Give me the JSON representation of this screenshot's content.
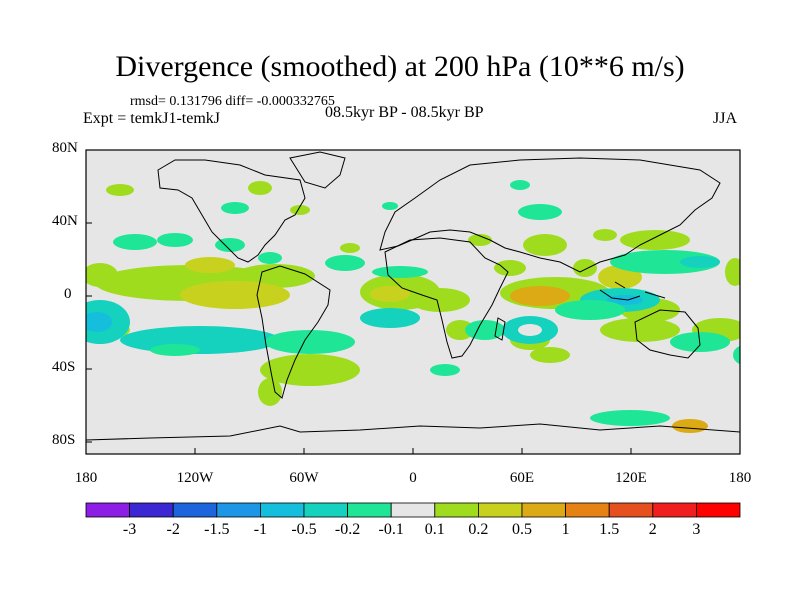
{
  "title": "Divergence (smoothed) at 200 hPa (10**6 m/s)",
  "stats": "rmsd= 0.131796 diff= -0.000332765",
  "expt": "Expt = temkJ1-temkJ",
  "period": "08.5kyr BP - 08.5kyr BP",
  "season": "JJA",
  "y_ticks": [
    "80N",
    "40N",
    "0",
    "40S",
    "80S"
  ],
  "x_ticks": [
    "180",
    "120W",
    "60W",
    "0",
    "60E",
    "120E",
    "180"
  ],
  "colorbar": {
    "labels": [
      "-3",
      "-2",
      "-1.5",
      "-1",
      "-0.5",
      "-0.2",
      "-0.1",
      "0.1",
      "0.2",
      "0.5",
      "1",
      "1.5",
      "2",
      "3"
    ],
    "colors": [
      "#8c1ee6",
      "#3c28d2",
      "#1e64dc",
      "#1e96e6",
      "#14bedc",
      "#14d2be",
      "#1ee696",
      "#e6e6e6",
      "#a0dc1e",
      "#c8d21e",
      "#dcaa14",
      "#e68214",
      "#e6501e",
      "#f01e1e",
      "#ff0000"
    ]
  },
  "colors": {
    "neutral": "#e6e6e6",
    "pos_weak": "#a0dc1e",
    "pos_mid": "#c8d21e",
    "pos_strong": "#dcaa14",
    "neg_weak": "#1ee696",
    "neg_mid": "#14d2be",
    "neg_strong": "#14bedc"
  }
}
